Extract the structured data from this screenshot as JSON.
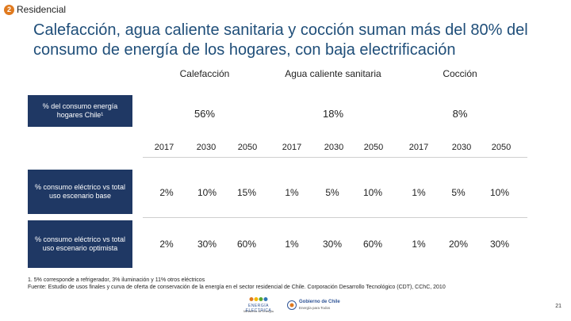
{
  "section": {
    "number": "2",
    "label": "Residencial"
  },
  "title": "Calefacción, agua caliente sanitaria y cocción suman más del 80% del consumo de energía de los hogares, con baja electrificación",
  "categories": [
    "Calefacción",
    "Agua caliente sanitaria",
    "Cocción"
  ],
  "share_label": "% del consumo energía hogares Chile¹",
  "shares": [
    "56%",
    "18%",
    "8%"
  ],
  "years": [
    "2017",
    "2030",
    "2050",
    "2017",
    "2030",
    "2050",
    "2017",
    "2030",
    "2050"
  ],
  "rows": [
    {
      "label": "% consumo eléctrico vs total uso escenario base",
      "values": [
        "2%",
        "10%",
        "15%",
        "1%",
        "5%",
        "10%",
        "1%",
        "5%",
        "10%"
      ]
    },
    {
      "label": "% consumo eléctrico vs total uso escenario optimista",
      "values": [
        "2%",
        "30%",
        "60%",
        "1%",
        "30%",
        "60%",
        "1%",
        "20%",
        "30%"
      ]
    }
  ],
  "footnotes": [
    "1. 5% corresponde a refrigerador, 3% iluminación y 11% otros eléctricos",
    "Fuente: Estudio de usos finales y curva de oferta de conservación de la energía en el sector residencial de Chile. Corporación Desarrollo Tecnológico (CDT), CChC, 2010"
  ],
  "logos": {
    "energia": {
      "name": "ENERGÍA ELECTRICA",
      "sub": "Ministerio de Energía"
    },
    "gobierno": {
      "name": "Gobierno de Chile",
      "sub": "Energía para Todos"
    }
  },
  "page_number": "21",
  "colors": {
    "title": "#1f4e79",
    "label_box": "#1f3864",
    "badge": "#e07a1f"
  }
}
